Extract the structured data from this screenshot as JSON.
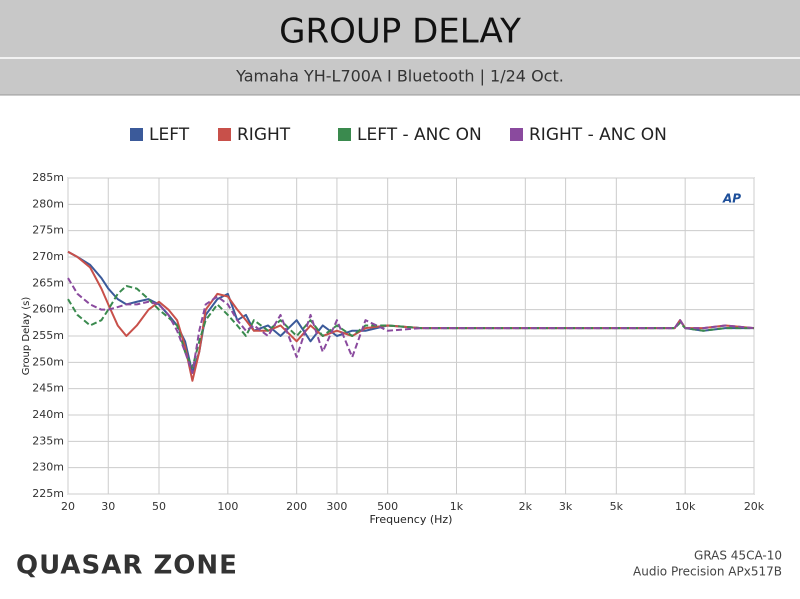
{
  "chart_data": {
    "type": "line",
    "title": "GROUP DELAY",
    "subtitle": "Yamaha YH-L700A  I  Bluetooth  |  1/24 Oct.",
    "x_label": "Frequency (Hz)",
    "y_label": "Group Delay (s)",
    "log_x": true,
    "grid": true,
    "legend_position": "top",
    "x": [
      20,
      22,
      25,
      28,
      30,
      33,
      36,
      40,
      45,
      50,
      55,
      60,
      65,
      70,
      75,
      80,
      90,
      100,
      110,
      120,
      130,
      150,
      170,
      200,
      230,
      260,
      300,
      350,
      400,
      500,
      700,
      1000,
      2000,
      5000,
      9000,
      9500,
      10000,
      12000,
      15000,
      20000
    ],
    "series": [
      {
        "name": "LEFT",
        "color": "#3b5a9a",
        "values": [
          0.271,
          0.27,
          0.2685,
          0.266,
          0.264,
          0.262,
          0.261,
          0.2615,
          0.262,
          0.261,
          0.259,
          0.257,
          0.254,
          0.248,
          0.252,
          0.259,
          0.262,
          0.263,
          0.258,
          0.259,
          0.256,
          0.257,
          0.255,
          0.258,
          0.254,
          0.257,
          0.255,
          0.256,
          0.256,
          0.257,
          0.2565,
          0.2565,
          0.2565,
          0.2565,
          0.2565,
          0.258,
          0.2565,
          0.256,
          0.2565,
          0.2565
        ]
      },
      {
        "name": "RIGHT",
        "color": "#c8504a",
        "values": [
          0.271,
          0.27,
          0.268,
          0.264,
          0.261,
          0.257,
          0.255,
          0.257,
          0.26,
          0.2615,
          0.26,
          0.258,
          0.253,
          0.2465,
          0.252,
          0.26,
          0.263,
          0.2625,
          0.26,
          0.258,
          0.256,
          0.256,
          0.257,
          0.254,
          0.257,
          0.255,
          0.256,
          0.255,
          0.2565,
          0.257,
          0.2565,
          0.2565,
          0.2565,
          0.2565,
          0.2565,
          0.258,
          0.2565,
          0.2565,
          0.257,
          0.2565
        ]
      },
      {
        "name": "LEFT - ANC ON",
        "color": "#3a8a4e",
        "values": [
          0.262,
          0.259,
          0.257,
          0.258,
          0.26,
          0.263,
          0.2645,
          0.264,
          0.262,
          0.26,
          0.2585,
          0.257,
          0.252,
          0.249,
          0.254,
          0.258,
          0.261,
          0.259,
          0.257,
          0.255,
          0.258,
          0.256,
          0.258,
          0.255,
          0.258,
          0.255,
          0.257,
          0.255,
          0.257,
          0.257,
          0.2565,
          0.2565,
          0.2565,
          0.2565,
          0.2565,
          0.2575,
          0.2565,
          0.256,
          0.2565,
          0.2565
        ]
      },
      {
        "name": "RIGHT - ANC ON",
        "color": "#8a4a9e",
        "values": [
          0.266,
          0.263,
          0.261,
          0.26,
          0.26,
          0.2605,
          0.261,
          0.261,
          0.2615,
          0.261,
          0.259,
          0.256,
          0.252,
          0.248,
          0.256,
          0.261,
          0.2625,
          0.261,
          0.258,
          0.256,
          0.257,
          0.255,
          0.259,
          0.251,
          0.259,
          0.252,
          0.258,
          0.251,
          0.258,
          0.256,
          0.2565,
          0.2565,
          0.2565,
          0.2565,
          0.2565,
          0.258,
          0.2565,
          0.2565,
          0.257,
          0.2565
        ]
      }
    ],
    "xlim": [
      20,
      20000
    ],
    "xticks": [
      20,
      30,
      50,
      100,
      200,
      300,
      500,
      {
        "value": 1000,
        "label": "1k"
      },
      {
        "value": 2000,
        "label": "2k"
      },
      {
        "value": 3000,
        "label": "3k"
      },
      {
        "value": 5000,
        "label": "5k"
      },
      {
        "value": 10000,
        "label": "10k"
      },
      {
        "value": 20000,
        "label": "20k"
      }
    ],
    "ylim": [
      0.225,
      0.285
    ],
    "yticks": [
      {
        "value": 0.225,
        "label": "225m"
      },
      {
        "value": 0.23,
        "label": "230m"
      },
      {
        "value": 0.235,
        "label": "235m"
      },
      {
        "value": 0.24,
        "label": "240m"
      },
      {
        "value": 0.245,
        "label": "245m"
      },
      {
        "value": 0.25,
        "label": "250m"
      },
      {
        "value": 0.255,
        "label": "255m"
      },
      {
        "value": 0.26,
        "label": "260m"
      },
      {
        "value": 0.265,
        "label": "265m"
      },
      {
        "value": 0.27,
        "label": "270m"
      },
      {
        "value": 0.275,
        "label": "275m"
      },
      {
        "value": 0.28,
        "label": "280m"
      },
      {
        "value": 0.285,
        "label": "285m"
      }
    ],
    "badge": "AP",
    "logo": "QUASAR ZONE",
    "footer_lines": [
      "GRAS 45CA-10",
      "Audio Precision APx517B"
    ]
  }
}
